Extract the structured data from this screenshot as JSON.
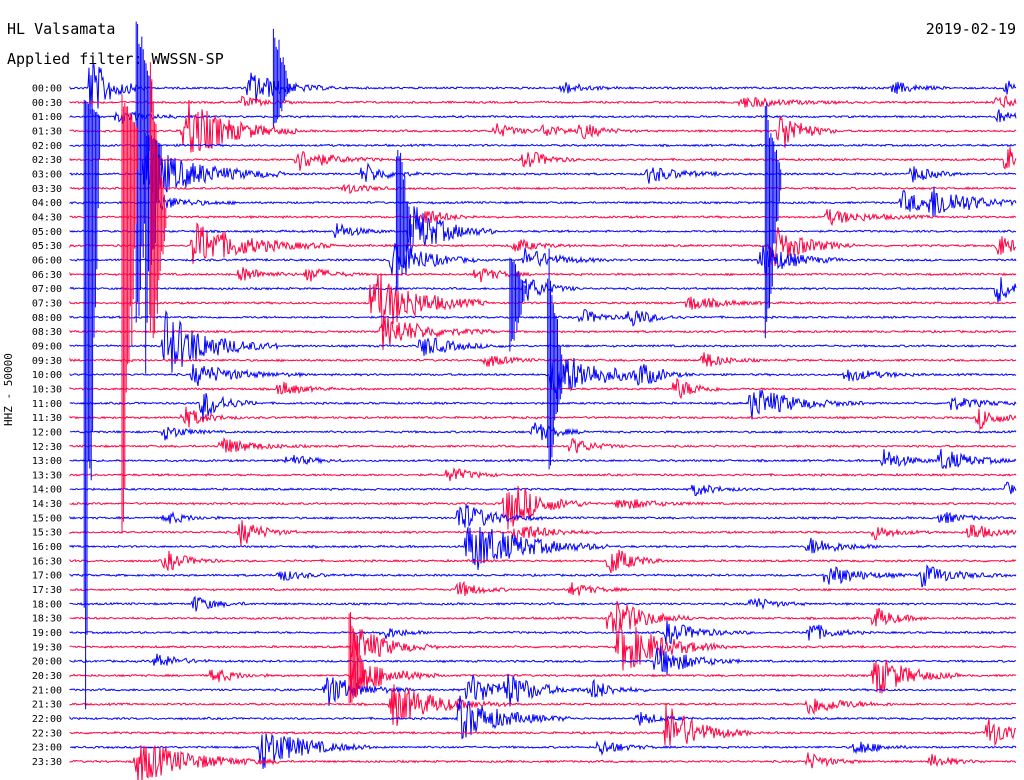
{
  "header": {
    "station": "HL Valsamata",
    "date": "2019-02-19",
    "filter": "Applied filter: WWSSN-SP"
  },
  "colors": {
    "trace_a": "#0000ff",
    "trace_b": "#ff0040",
    "text": "#000000"
  },
  "chart_data": {
    "type": "line",
    "title": "HL Valsamata",
    "subtitle": "Applied filter: WWSSN-SP",
    "ylabel": "HHZ - 50000",
    "xlabel": "",
    "grid": false,
    "legend": "none",
    "series_colors_alternate": [
      "#0000ff",
      "#ff0040"
    ],
    "hour_labels": [
      "00:00",
      "00:30",
      "01:00",
      "01:30",
      "02:00",
      "02:30",
      "03:00",
      "03:30",
      "04:00",
      "04:30",
      "05:00",
      "05:30",
      "06:00",
      "06:30",
      "07:00",
      "07:30",
      "08:00",
      "08:30",
      "09:00",
      "09:30",
      "10:00",
      "10:30",
      "11:00",
      "11:30",
      "12:00",
      "12:30",
      "13:00",
      "13:30",
      "14:00",
      "14:30",
      "15:00",
      "15:30",
      "16:00",
      "16:30",
      "17:00",
      "17:30",
      "18:00",
      "18:30",
      "19:00",
      "19:30",
      "20:00",
      "20:30",
      "21:00",
      "21:30",
      "22:00",
      "22:30",
      "23:00",
      "23:30"
    ],
    "events": [
      {
        "row": 0,
        "x": 0.02,
        "amp": 6,
        "dur": 0.02
      },
      {
        "row": 0,
        "x": 0.19,
        "amp": 3,
        "dur": 0.03
      },
      {
        "row": 0,
        "x": 0.52,
        "amp": 1.2,
        "dur": 0.02
      },
      {
        "row": 0,
        "x": 0.87,
        "amp": 1.2,
        "dur": 0.02
      },
      {
        "row": 0,
        "x": 0.99,
        "amp": 1.4,
        "dur": 0.01
      },
      {
        "row": 1,
        "x": 0.18,
        "amp": 1,
        "dur": 0.02
      },
      {
        "row": 1,
        "x": 0.71,
        "amp": 1,
        "dur": 0.04
      },
      {
        "row": 1,
        "x": 0.98,
        "amp": 1.4,
        "dur": 0.02
      },
      {
        "row": 2,
        "x": 0.05,
        "amp": 1,
        "dur": 0.03
      },
      {
        "row": 2,
        "x": 0.98,
        "amp": 1.2,
        "dur": 0.02
      },
      {
        "row": 3,
        "x": 0.12,
        "amp": 6,
        "dur": 0.04
      },
      {
        "row": 3,
        "x": 0.45,
        "amp": 1.3,
        "dur": 0.02
      },
      {
        "row": 3,
        "x": 0.5,
        "amp": 1.2,
        "dur": 0.02
      },
      {
        "row": 3,
        "x": 0.54,
        "amp": 1.4,
        "dur": 0.02
      },
      {
        "row": 3,
        "x": 0.75,
        "amp": 4,
        "dur": 0.02
      },
      {
        "row": 5,
        "x": 0.24,
        "amp": 2,
        "dur": 0.03
      },
      {
        "row": 5,
        "x": 0.48,
        "amp": 2,
        "dur": 0.02
      },
      {
        "row": 5,
        "x": 0.99,
        "amp": 3,
        "dur": 0.01
      },
      {
        "row": 6,
        "x": 0.08,
        "amp": 5,
        "dur": 0.05
      },
      {
        "row": 6,
        "x": 0.31,
        "amp": 2,
        "dur": 0.02
      },
      {
        "row": 6,
        "x": 0.61,
        "amp": 1.6,
        "dur": 0.03
      },
      {
        "row": 6,
        "x": 0.89,
        "amp": 1.5,
        "dur": 0.02
      },
      {
        "row": 7,
        "x": 0.29,
        "amp": 1,
        "dur": 0.02
      },
      {
        "row": 8,
        "x": 0.09,
        "amp": 1.4,
        "dur": 0.03
      },
      {
        "row": 8,
        "x": 0.88,
        "amp": 2,
        "dur": 0.03
      },
      {
        "row": 8,
        "x": 0.91,
        "amp": 2.5,
        "dur": 0.04
      },
      {
        "row": 9,
        "x": 0.37,
        "amp": 2,
        "dur": 0.02
      },
      {
        "row": 9,
        "x": 0.8,
        "amp": 1.3,
        "dur": 0.04
      },
      {
        "row": 10,
        "x": 0.28,
        "amp": 1.5,
        "dur": 0.02
      },
      {
        "row": 10,
        "x": 0.36,
        "amp": 5,
        "dur": 0.03
      },
      {
        "row": 11,
        "x": 0.13,
        "amp": 4,
        "dur": 0.05
      },
      {
        "row": 11,
        "x": 0.47,
        "amp": 1.3,
        "dur": 0.02
      },
      {
        "row": 11,
        "x": 0.74,
        "amp": 4,
        "dur": 0.03
      },
      {
        "row": 11,
        "x": 0.98,
        "amp": 2,
        "dur": 0.02
      },
      {
        "row": 12,
        "x": 0.34,
        "amp": 4,
        "dur": 0.03
      },
      {
        "row": 12,
        "x": 0.48,
        "amp": 2,
        "dur": 0.03
      },
      {
        "row": 12,
        "x": 0.73,
        "amp": 3,
        "dur": 0.03
      },
      {
        "row": 13,
        "x": 0.18,
        "amp": 1.5,
        "dur": 0.02
      },
      {
        "row": 13,
        "x": 0.25,
        "amp": 1.5,
        "dur": 0.02
      },
      {
        "row": 13,
        "x": 0.43,
        "amp": 1.5,
        "dur": 0.02
      },
      {
        "row": 14,
        "x": 0.48,
        "amp": 2.5,
        "dur": 0.02
      },
      {
        "row": 14,
        "x": 0.98,
        "amp": 2.5,
        "dur": 0.02
      },
      {
        "row": 15,
        "x": 0.32,
        "amp": 6,
        "dur": 0.04
      },
      {
        "row": 15,
        "x": 0.65,
        "amp": 1.5,
        "dur": 0.03
      },
      {
        "row": 16,
        "x": 0.54,
        "amp": 1.4,
        "dur": 0.02
      },
      {
        "row": 16,
        "x": 0.59,
        "amp": 2,
        "dur": 0.02
      },
      {
        "row": 17,
        "x": 0.33,
        "amp": 3,
        "dur": 0.04
      },
      {
        "row": 18,
        "x": 0.1,
        "amp": 6,
        "dur": 0.04
      },
      {
        "row": 18,
        "x": 0.37,
        "amp": 2,
        "dur": 0.03
      },
      {
        "row": 19,
        "x": 0.44,
        "amp": 1.2,
        "dur": 0.02
      },
      {
        "row": 19,
        "x": 0.67,
        "amp": 1.5,
        "dur": 0.02
      },
      {
        "row": 20,
        "x": 0.13,
        "amp": 2,
        "dur": 0.04
      },
      {
        "row": 20,
        "x": 0.51,
        "amp": 5,
        "dur": 0.04
      },
      {
        "row": 20,
        "x": 0.6,
        "amp": 2,
        "dur": 0.02
      },
      {
        "row": 20,
        "x": 0.82,
        "amp": 1.2,
        "dur": 0.03
      },
      {
        "row": 21,
        "x": 0.22,
        "amp": 1.5,
        "dur": 0.02
      },
      {
        "row": 21,
        "x": 0.64,
        "amp": 2,
        "dur": 0.02
      },
      {
        "row": 22,
        "x": 0.14,
        "amp": 3,
        "dur": 0.02
      },
      {
        "row": 22,
        "x": 0.72,
        "amp": 3,
        "dur": 0.04
      },
      {
        "row": 22,
        "x": 0.93,
        "amp": 1.2,
        "dur": 0.03
      },
      {
        "row": 23,
        "x": 0.12,
        "amp": 2,
        "dur": 0.02
      },
      {
        "row": 23,
        "x": 0.96,
        "amp": 2,
        "dur": 0.02
      },
      {
        "row": 24,
        "x": 0.1,
        "amp": 1.3,
        "dur": 0.02
      },
      {
        "row": 24,
        "x": 0.49,
        "amp": 2,
        "dur": 0.02
      },
      {
        "row": 25,
        "x": 0.16,
        "amp": 1.5,
        "dur": 0.03
      },
      {
        "row": 25,
        "x": 0.53,
        "amp": 1.5,
        "dur": 0.02
      },
      {
        "row": 26,
        "x": 0.23,
        "amp": 1.2,
        "dur": 0.02
      },
      {
        "row": 26,
        "x": 0.86,
        "amp": 2,
        "dur": 0.02
      },
      {
        "row": 26,
        "x": 0.92,
        "amp": 2,
        "dur": 0.03
      },
      {
        "row": 27,
        "x": 0.4,
        "amp": 1.5,
        "dur": 0.02
      },
      {
        "row": 28,
        "x": 0.66,
        "amp": 1.2,
        "dur": 0.02
      },
      {
        "row": 28,
        "x": 0.99,
        "amp": 1.2,
        "dur": 0.01
      },
      {
        "row": 29,
        "x": 0.46,
        "amp": 5,
        "dur": 0.03
      },
      {
        "row": 29,
        "x": 0.58,
        "amp": 1.2,
        "dur": 0.03
      },
      {
        "row": 30,
        "x": 0.1,
        "amp": 1.2,
        "dur": 0.02
      },
      {
        "row": 30,
        "x": 0.41,
        "amp": 3,
        "dur": 0.03
      },
      {
        "row": 30,
        "x": 0.92,
        "amp": 1.2,
        "dur": 0.02
      },
      {
        "row": 31,
        "x": 0.18,
        "amp": 2.5,
        "dur": 0.02
      },
      {
        "row": 31,
        "x": 0.47,
        "amp": 1.8,
        "dur": 0.03
      },
      {
        "row": 31,
        "x": 0.85,
        "amp": 1.3,
        "dur": 0.02
      },
      {
        "row": 31,
        "x": 0.95,
        "amp": 1.8,
        "dur": 0.02
      },
      {
        "row": 32,
        "x": 0.42,
        "amp": 5,
        "dur": 0.05
      },
      {
        "row": 32,
        "x": 0.78,
        "amp": 1.6,
        "dur": 0.03
      },
      {
        "row": 33,
        "x": 0.1,
        "amp": 2,
        "dur": 0.02
      },
      {
        "row": 33,
        "x": 0.57,
        "amp": 3,
        "dur": 0.02
      },
      {
        "row": 34,
        "x": 0.22,
        "amp": 1.2,
        "dur": 0.02
      },
      {
        "row": 34,
        "x": 0.8,
        "amp": 2,
        "dur": 0.03
      },
      {
        "row": 34,
        "x": 0.9,
        "amp": 2,
        "dur": 0.03
      },
      {
        "row": 35,
        "x": 0.41,
        "amp": 1.5,
        "dur": 0.02
      },
      {
        "row": 35,
        "x": 0.53,
        "amp": 1.3,
        "dur": 0.02
      },
      {
        "row": 36,
        "x": 0.13,
        "amp": 1.5,
        "dur": 0.02
      },
      {
        "row": 36,
        "x": 0.72,
        "amp": 1.3,
        "dur": 0.02
      },
      {
        "row": 37,
        "x": 0.57,
        "amp": 4,
        "dur": 0.03
      },
      {
        "row": 37,
        "x": 0.85,
        "amp": 2,
        "dur": 0.02
      },
      {
        "row": 38,
        "x": 0.33,
        "amp": 1.2,
        "dur": 0.02
      },
      {
        "row": 38,
        "x": 0.63,
        "amp": 2,
        "dur": 0.03
      },
      {
        "row": 38,
        "x": 0.78,
        "amp": 2,
        "dur": 0.02
      },
      {
        "row": 39,
        "x": 0.58,
        "amp": 5,
        "dur": 0.04
      },
      {
        "row": 39,
        "x": 0.3,
        "amp": 4,
        "dur": 0.03
      },
      {
        "row": 40,
        "x": 0.62,
        "amp": 3,
        "dur": 0.03
      },
      {
        "row": 40,
        "x": 0.09,
        "amp": 1.5,
        "dur": 0.02
      },
      {
        "row": 41,
        "x": 0.3,
        "amp": 4,
        "dur": 0.03
      },
      {
        "row": 41,
        "x": 0.15,
        "amp": 1.5,
        "dur": 0.02
      },
      {
        "row": 41,
        "x": 0.85,
        "amp": 4,
        "dur": 0.03
      },
      {
        "row": 42,
        "x": 0.27,
        "amp": 3,
        "dur": 0.03
      },
      {
        "row": 42,
        "x": 0.42,
        "amp": 3,
        "dur": 0.03
      },
      {
        "row": 42,
        "x": 0.46,
        "amp": 2.5,
        "dur": 0.03
      },
      {
        "row": 42,
        "x": 0.55,
        "amp": 2,
        "dur": 0.02
      },
      {
        "row": 43,
        "x": 0.34,
        "amp": 4,
        "dur": 0.04
      },
      {
        "row": 43,
        "x": 0.78,
        "amp": 2,
        "dur": 0.03
      },
      {
        "row": 44,
        "x": 0.41,
        "amp": 4,
        "dur": 0.04
      },
      {
        "row": 44,
        "x": 0.6,
        "amp": 1.3,
        "dur": 0.02
      },
      {
        "row": 45,
        "x": 0.63,
        "amp": 5,
        "dur": 0.03
      },
      {
        "row": 45,
        "x": 0.97,
        "amp": 3,
        "dur": 0.02
      },
      {
        "row": 46,
        "x": 0.2,
        "amp": 4,
        "dur": 0.04
      },
      {
        "row": 46,
        "x": 0.56,
        "amp": 1.5,
        "dur": 0.02
      },
      {
        "row": 46,
        "x": 0.83,
        "amp": 1.5,
        "dur": 0.02
      },
      {
        "row": 47,
        "x": 0.07,
        "amp": 4,
        "dur": 0.05
      },
      {
        "row": 47,
        "x": 0.78,
        "amp": 1.5,
        "dur": 0.02
      },
      {
        "row": 47,
        "x": 0.91,
        "amp": 1.2,
        "dur": 0.02
      }
    ],
    "long_spikes": [
      {
        "row": 0,
        "x": 0.07,
        "up": 80,
        "down": 350
      },
      {
        "row": 2,
        "x": 0.015,
        "up": 20,
        "down": 660
      },
      {
        "row": 3,
        "x": 0.055,
        "up": 40,
        "down": 560
      },
      {
        "row": 4,
        "x": 0.08,
        "up": 15,
        "down": 250
      },
      {
        "row": 0,
        "x": 0.215,
        "up": 75,
        "down": 50
      },
      {
        "row": 9,
        "x": 0.085,
        "up": 160,
        "down": 170
      },
      {
        "row": 10,
        "x": 0.345,
        "up": 115,
        "down": 70
      },
      {
        "row": 20,
        "x": 0.505,
        "up": 140,
        "down": 120
      },
      {
        "row": 6,
        "x": 0.735,
        "up": 80,
        "down": 210
      },
      {
        "row": 14,
        "x": 0.465,
        "up": 40,
        "down": 80
      },
      {
        "row": 41,
        "x": 0.295,
        "up": 80,
        "down": 40
      }
    ]
  }
}
